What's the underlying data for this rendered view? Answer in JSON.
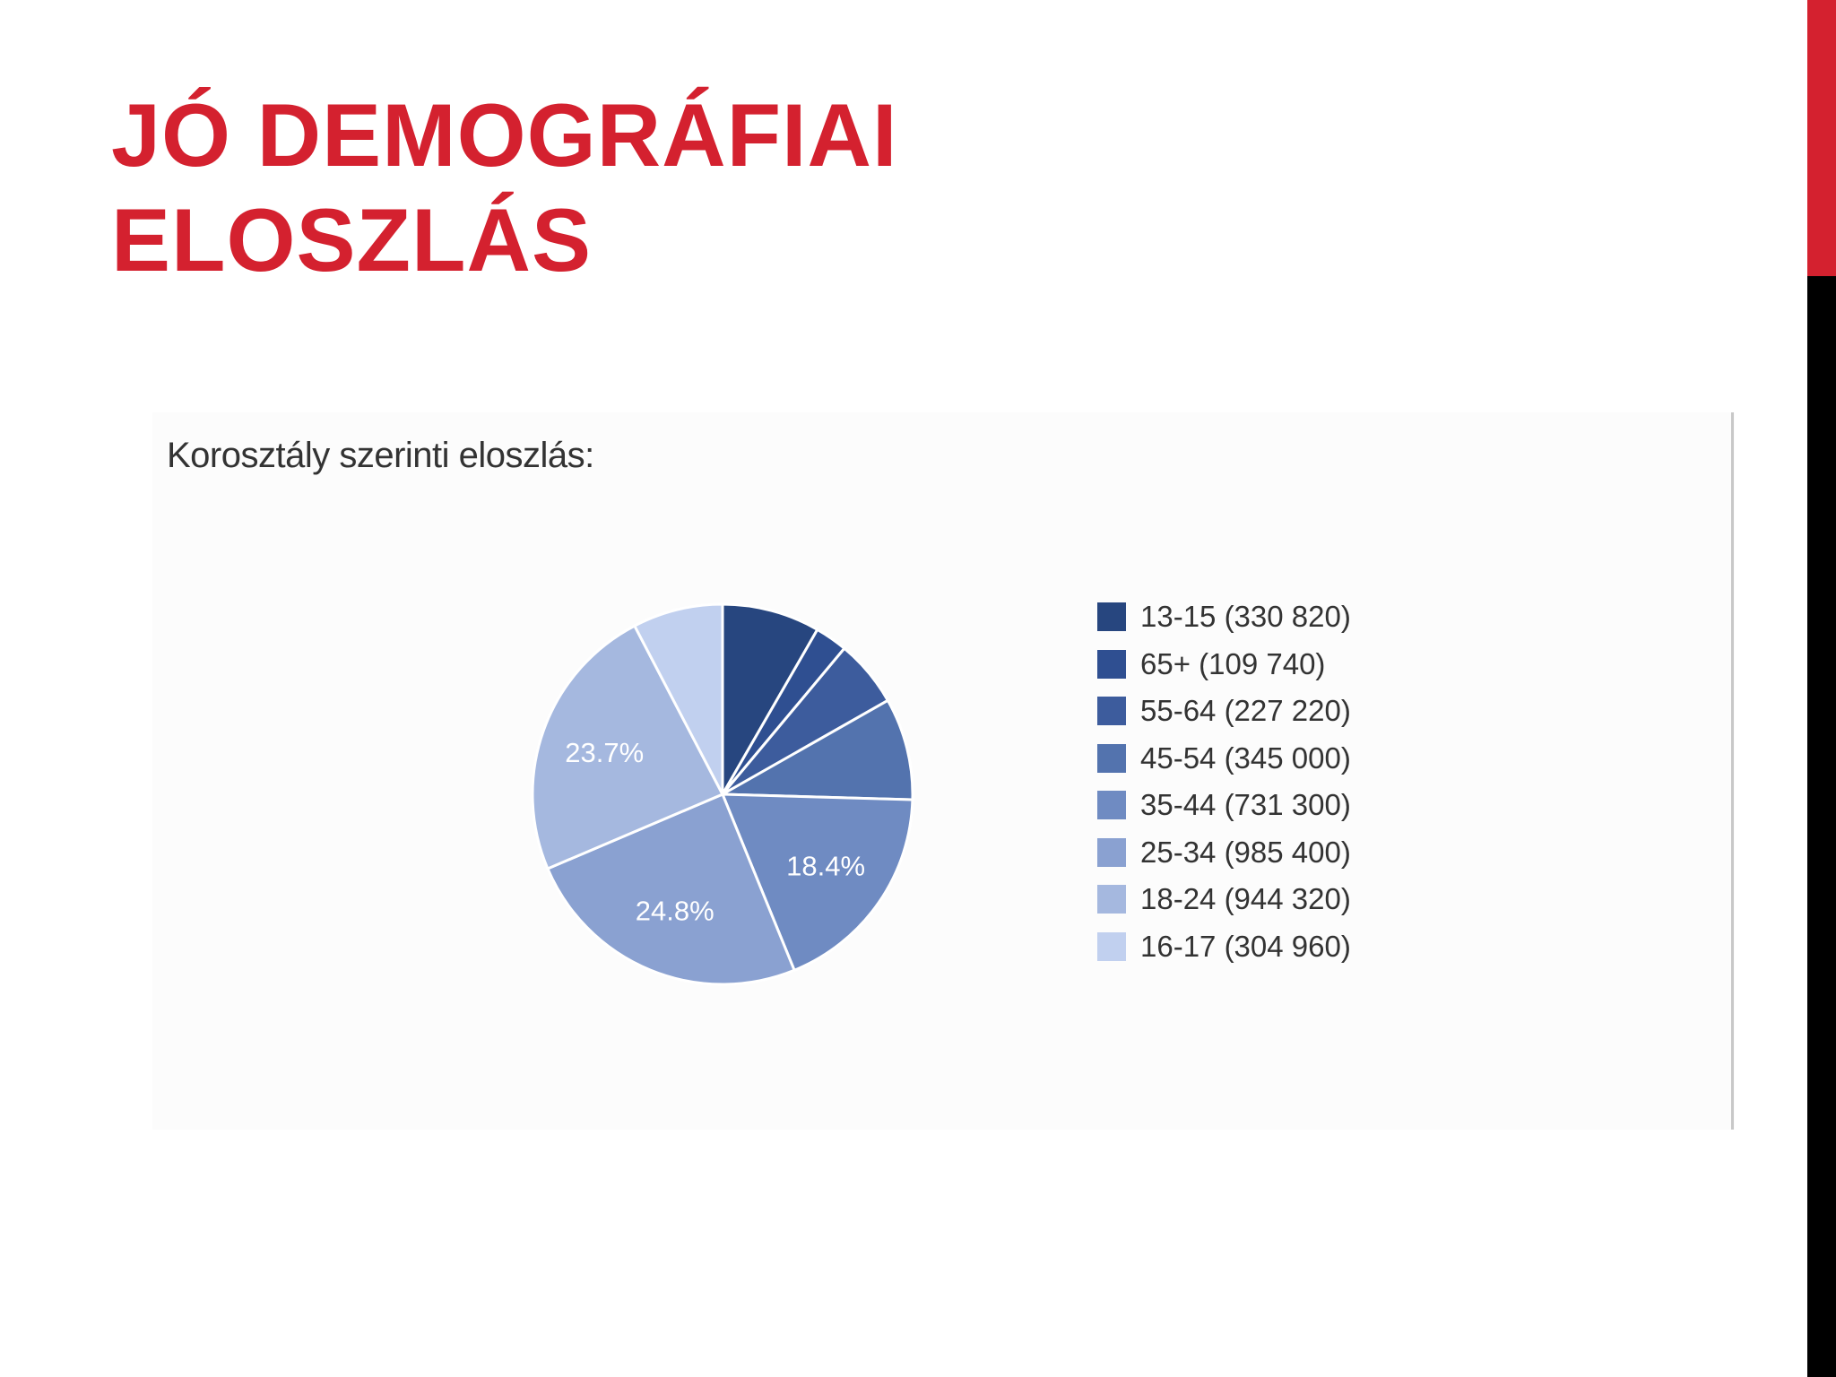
{
  "slide": {
    "title_line1": "JÓ DEMOGRÁFIAI",
    "title_line2": "ELOSZLÁS",
    "title_color": "#d4212f"
  },
  "chart_data": {
    "type": "pie",
    "title": "Korosztály szerinti eloszlás:",
    "legend_position": "right",
    "slices": [
      {
        "label": "13-15 (330 820)",
        "category": "13-15",
        "value": 330820,
        "color": "#27467f",
        "show_percent": false
      },
      {
        "label": "65+ (109 740)",
        "category": "65+",
        "value": 109740,
        "color": "#2f4f91",
        "show_percent": false
      },
      {
        "label": "55-64 (227 220)",
        "category": "55-64",
        "value": 227220,
        "color": "#3d5c9d",
        "show_percent": false
      },
      {
        "label": "45-54 (345 000)",
        "category": "45-54",
        "value": 345000,
        "color": "#5373ae",
        "show_percent": false
      },
      {
        "label": "35-44 (731 300)",
        "category": "35-44",
        "value": 731300,
        "color": "#6f8bc2",
        "show_percent": true,
        "percent_label": "18.4%"
      },
      {
        "label": "25-34 (985 400)",
        "category": "25-34",
        "value": 985400,
        "color": "#8aa1d1",
        "show_percent": true,
        "percent_label": "24.8%"
      },
      {
        "label": "18-24 (944 320)",
        "category": "18-24",
        "value": 944320,
        "color": "#a5b8df",
        "show_percent": true,
        "percent_label": "23.7%"
      },
      {
        "label": "16-17 (304 960)",
        "category": "16-17",
        "value": 304960,
        "color": "#c1d0ef",
        "show_percent": false
      }
    ]
  }
}
